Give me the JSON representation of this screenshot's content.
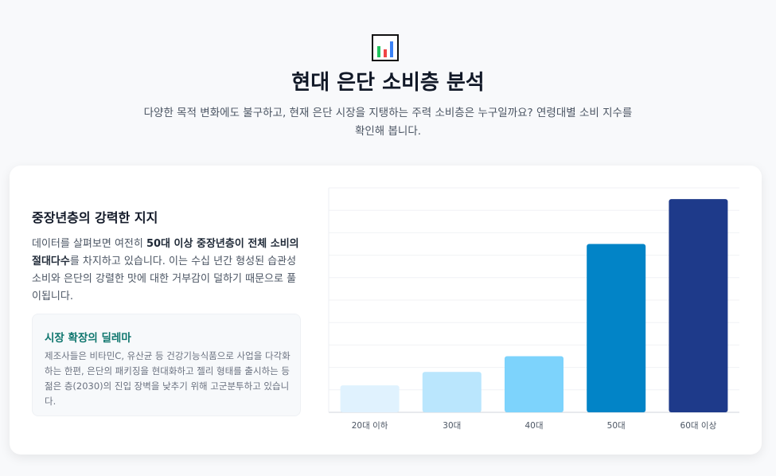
{
  "hero": {
    "icon": "bar-chart-icon",
    "title": "현대 은단 소비층 분석",
    "subtitle": "다양한 목적 변화에도 불구하고, 현재 은단 시장을 지탱하는 주력 소비층은 누구일까요? 연령대별 소비 지수를 확인해 봅니다."
  },
  "left": {
    "title": "중장년층의 강력한 지지",
    "body_a": "데이터를 살펴보면 여전히 ",
    "body_bold": "50대 이상 중장년층이 전체 소비의 절대다수",
    "body_b": "를 차지하고 있습니다. 이는 수십 년간 형성된 습관성 소비와 은단의 강렬한 맛에 대한 거부감이 덜하기 때문으로 풀이됩니다.",
    "callout_title": "시장 확장의 딜레마",
    "callout_body": "제조사들은 비타민C, 유산균 등 건강기능식품으로 사업을 다각화하는 한편, 은단의 패키징을 현대화하고 젤리 형태를 출시하는 등 젊은 층(2030)의 진입 장벽을 낮추기 위해 고군분투하고 있습니다."
  },
  "chart_data": {
    "type": "bar",
    "categories": [
      "20대 이하",
      "30대",
      "40대",
      "50대",
      "60대 이상"
    ],
    "values": [
      12,
      18,
      25,
      75,
      95
    ],
    "ylim": [
      0,
      100
    ],
    "colors": [
      "#e0f2fe",
      "#bae6fd",
      "#7dd3fc",
      "#0284c7",
      "#1e3a8a"
    ],
    "grid": true,
    "legend": "none"
  }
}
